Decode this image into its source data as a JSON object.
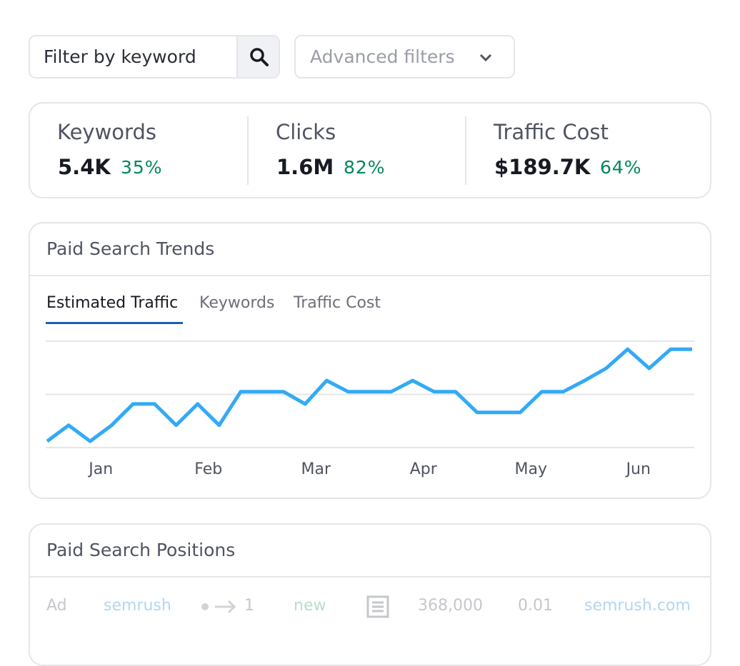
{
  "filters": {
    "keyword_placeholder": "Filter by keyword",
    "advanced": "Advanced filters"
  },
  "metrics": [
    {
      "label": "Keywords",
      "value": "5.4K",
      "change": "35%"
    },
    {
      "label": "Clicks",
      "value": "1.6M",
      "change": "82%"
    },
    {
      "label": "Traffic Cost",
      "value": "$189.7K",
      "change": "64%"
    }
  ],
  "trends": {
    "title": "Paid Search Trends",
    "tabs": [
      "Estimated Traffic",
      "Keywords",
      "Traffic Cost"
    ]
  },
  "chart_data": {
    "type": "line",
    "categories": [
      null,
      null,
      "Jan",
      null,
      null,
      null,
      null,
      "Feb",
      null,
      null,
      null,
      null,
      "Mar",
      null,
      null,
      null,
      null,
      "Apr",
      null,
      null,
      null,
      null,
      "May",
      null,
      null,
      null,
      null,
      "Jun",
      null,
      null,
      null
    ],
    "values": [
      0.12,
      0.42,
      0.12,
      0.42,
      0.82,
      0.82,
      0.42,
      0.82,
      0.42,
      1.05,
      1.05,
      1.05,
      0.82,
      1.26,
      1.05,
      1.05,
      1.05,
      1.26,
      1.05,
      1.05,
      0.66,
      0.66,
      0.66,
      1.05,
      1.05,
      1.26,
      1.49,
      1.85,
      1.49,
      1.85,
      1.85
    ],
    "color": "#33aaf5",
    "ylim": [
      0,
      2
    ],
    "yticks": [
      0,
      1,
      2
    ],
    "grid": true
  },
  "positions": {
    "title": "Paid Search Positions",
    "row": {
      "type": "Ad",
      "keyword": "semrush",
      "position": "1",
      "status": "new",
      "volume": "368,000",
      "cpc": "0.01",
      "domain": "semrush.com"
    }
  }
}
